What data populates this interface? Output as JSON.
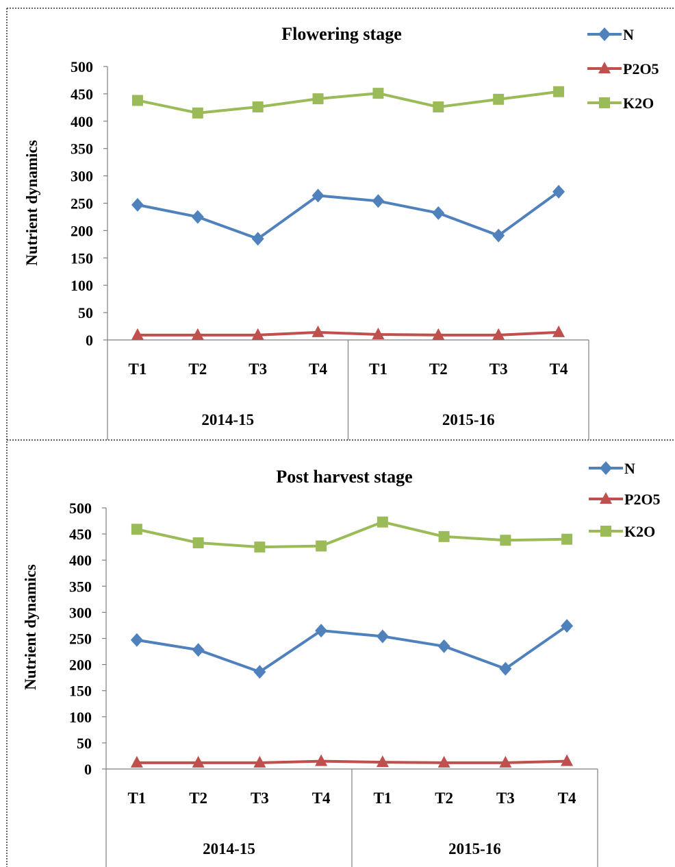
{
  "series_style": {
    "N": {
      "color": "#4F81BD",
      "marker": "diamond"
    },
    "P2O5": {
      "color": "#C0504D",
      "marker": "triangle"
    },
    "K2O": {
      "color": "#9BBB59",
      "marker": "square"
    }
  },
  "chart_data": [
    {
      "type": "line",
      "title": "Flowering stage",
      "ylabel": "Nutrient dynamics",
      "xlabel": "",
      "ylim": [
        0,
        500
      ],
      "yticks": [
        0,
        50,
        100,
        150,
        200,
        250,
        300,
        350,
        400,
        450,
        500
      ],
      "categories": [
        "T1",
        "T2",
        "T3",
        "T4",
        "T1",
        "T2",
        "T3",
        "T4"
      ],
      "groups": [
        {
          "label": "2014-15",
          "span": 4
        },
        {
          "label": "2015-16",
          "span": 4
        }
      ],
      "legend_position": "top-right",
      "grid": false,
      "series": [
        {
          "name": "N",
          "values": [
            247,
            225,
            185,
            264,
            254,
            232,
            191,
            271
          ]
        },
        {
          "name": "P2O5",
          "values": [
            9,
            9,
            9,
            14,
            10,
            9,
            9,
            14
          ]
        },
        {
          "name": "K2O",
          "values": [
            438,
            415,
            426,
            441,
            451,
            426,
            440,
            454
          ]
        }
      ]
    },
    {
      "type": "line",
      "title": "Post harvest stage",
      "ylabel": "Nutrient dynamics",
      "xlabel": "",
      "ylim": [
        0,
        500
      ],
      "yticks": [
        0,
        50,
        100,
        150,
        200,
        250,
        300,
        350,
        400,
        450,
        500
      ],
      "categories": [
        "T1",
        "T2",
        "T3",
        "T4",
        "T1",
        "T2",
        "T3",
        "T4"
      ],
      "groups": [
        {
          "label": "2014-15",
          "span": 4
        },
        {
          "label": "2015-16",
          "span": 4
        }
      ],
      "legend_position": "top-right",
      "grid": false,
      "series": [
        {
          "name": "N",
          "values": [
            247,
            228,
            186,
            265,
            254,
            235,
            192,
            274
          ]
        },
        {
          "name": "P2O5",
          "values": [
            12,
            12,
            12,
            15,
            13,
            12,
            12,
            15
          ]
        },
        {
          "name": "K2O",
          "values": [
            459,
            433,
            425,
            427,
            473,
            445,
            438,
            440
          ]
        }
      ]
    }
  ]
}
